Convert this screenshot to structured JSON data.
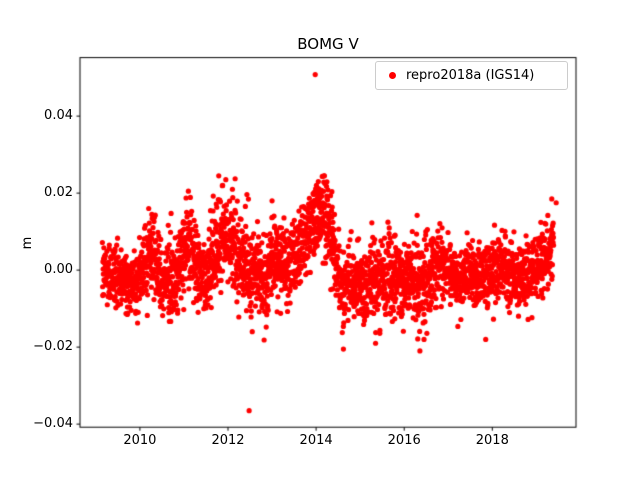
{
  "chart_data": {
    "type": "scatter",
    "title": "BOMG V",
    "xlabel": "",
    "ylabel": "m",
    "xlim": [
      2008.64,
      2019.9
    ],
    "ylim": [
      -0.0408,
      0.0552
    ],
    "xticks": [
      2010,
      2012,
      2014,
      2016,
      2018
    ],
    "xtick_labels": [
      "2010",
      "2012",
      "2014",
      "2016",
      "2018"
    ],
    "yticks": [
      -0.04,
      -0.02,
      0.0,
      0.02,
      0.04
    ],
    "ytick_labels": [
      "−0.04",
      "−0.02",
      "0.00",
      "0.02",
      "0.04"
    ],
    "grid": false,
    "legend": {
      "position": "upper right",
      "entries": [
        {
          "label": "repro2018a (IGS14)",
          "color": "#ff0000",
          "marker": "circle"
        }
      ]
    },
    "series": [
      {
        "name": "repro2018a (IGS14)",
        "color": "#ff0000",
        "marker_radius_px": 2.6,
        "x_start": 2009.15,
        "x_end": 2019.39,
        "n_points": 3000,
        "seed": 7,
        "mean_control_points": [
          [
            2009.15,
            -0.001
          ],
          [
            2009.6,
            -0.002
          ],
          [
            2009.9,
            -0.004
          ],
          [
            2010.1,
            0.002
          ],
          [
            2010.25,
            0.005
          ],
          [
            2010.5,
            -0.002
          ],
          [
            2010.75,
            -0.004
          ],
          [
            2011.0,
            0.004
          ],
          [
            2011.15,
            0.006
          ],
          [
            2011.35,
            0.0
          ],
          [
            2011.55,
            -0.002
          ],
          [
            2011.75,
            0.008
          ],
          [
            2011.95,
            0.01
          ],
          [
            2012.1,
            0.006
          ],
          [
            2012.3,
            0.004
          ],
          [
            2012.5,
            -0.002
          ],
          [
            2012.7,
            -0.001
          ],
          [
            2012.85,
            -0.004
          ],
          [
            2013.0,
            0.005
          ],
          [
            2013.15,
            0.004
          ],
          [
            2013.35,
            0.0
          ],
          [
            2013.55,
            0.004
          ],
          [
            2013.75,
            0.008
          ],
          [
            2013.95,
            0.013
          ],
          [
            2014.15,
            0.015
          ],
          [
            2014.3,
            0.013
          ],
          [
            2014.45,
            0.002
          ],
          [
            2014.6,
            -0.006
          ],
          [
            2014.8,
            -0.003
          ],
          [
            2015.0,
            -0.005
          ],
          [
            2015.2,
            -0.002
          ],
          [
            2015.45,
            -0.004
          ],
          [
            2015.7,
            -0.001
          ],
          [
            2015.95,
            -0.003
          ],
          [
            2016.2,
            -0.004
          ],
          [
            2016.45,
            -0.005
          ],
          [
            2016.7,
            0.0
          ],
          [
            2016.95,
            0.001
          ],
          [
            2017.2,
            -0.002
          ],
          [
            2017.45,
            0.0
          ],
          [
            2017.7,
            -0.003
          ],
          [
            2017.95,
            -0.001
          ],
          [
            2018.2,
            0.001
          ],
          [
            2018.45,
            -0.001
          ],
          [
            2018.7,
            -0.002
          ],
          [
            2018.95,
            0.0
          ],
          [
            2019.15,
            0.002
          ],
          [
            2019.39,
            0.005
          ]
        ],
        "std_control_points": [
          [
            2009.15,
            0.0035
          ],
          [
            2010.0,
            0.0045
          ],
          [
            2010.5,
            0.005
          ],
          [
            2011.0,
            0.0055
          ],
          [
            2011.5,
            0.005
          ],
          [
            2011.9,
            0.006
          ],
          [
            2012.3,
            0.006
          ],
          [
            2012.6,
            0.0055
          ],
          [
            2013.0,
            0.005
          ],
          [
            2013.5,
            0.005
          ],
          [
            2014.0,
            0.0045
          ],
          [
            2014.4,
            0.005
          ],
          [
            2015.0,
            0.005
          ],
          [
            2015.5,
            0.0055
          ],
          [
            2016.0,
            0.005
          ],
          [
            2016.5,
            0.0055
          ],
          [
            2017.0,
            0.004
          ],
          [
            2017.5,
            0.004
          ],
          [
            2018.0,
            0.004
          ],
          [
            2018.5,
            0.0045
          ],
          [
            2019.0,
            0.0045
          ],
          [
            2019.39,
            0.005
          ]
        ],
        "y_clamp": [
          -0.021,
          0.0245
        ],
        "notable_points": [
          [
            2013.98,
            0.0508
          ],
          [
            2012.48,
            -0.0365
          ],
          [
            2010.2,
            0.016
          ],
          [
            2011.1,
            0.0205
          ],
          [
            2011.95,
            0.0235
          ],
          [
            2012.1,
            0.021
          ],
          [
            2012.55,
            -0.016
          ],
          [
            2013.0,
            0.018
          ],
          [
            2014.05,
            0.023
          ],
          [
            2014.2,
            0.0225
          ],
          [
            2014.62,
            -0.0205
          ],
          [
            2015.35,
            -0.019
          ],
          [
            2016.45,
            -0.018
          ],
          [
            2017.85,
            -0.018
          ],
          [
            2019.35,
            0.0185
          ],
          [
            2019.45,
            0.0175
          ]
        ]
      }
    ]
  }
}
